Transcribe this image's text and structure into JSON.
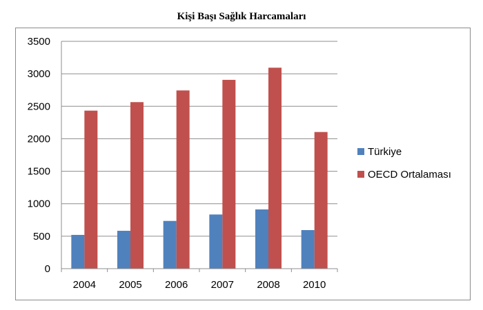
{
  "chart_data": {
    "type": "bar",
    "title": "Kişi Başı Sağlık Harcamaları",
    "categories": [
      "2004",
      "2005",
      "2006",
      "2007",
      "2008",
      "2010"
    ],
    "series": [
      {
        "name": "Türkiye",
        "color": "#4f81bd",
        "values": [
          520,
          583,
          735,
          834,
          912,
          594
        ]
      },
      {
        "name": "OECD Ortalaması",
        "color": "#c0504d",
        "values": [
          2433,
          2564,
          2744,
          2907,
          3094,
          2104
        ]
      }
    ],
    "ylim": [
      0,
      3500
    ],
    "yticks": [
      0,
      500,
      1000,
      1500,
      2000,
      2500,
      3000,
      3500
    ],
    "grid": true,
    "legend": "right"
  }
}
